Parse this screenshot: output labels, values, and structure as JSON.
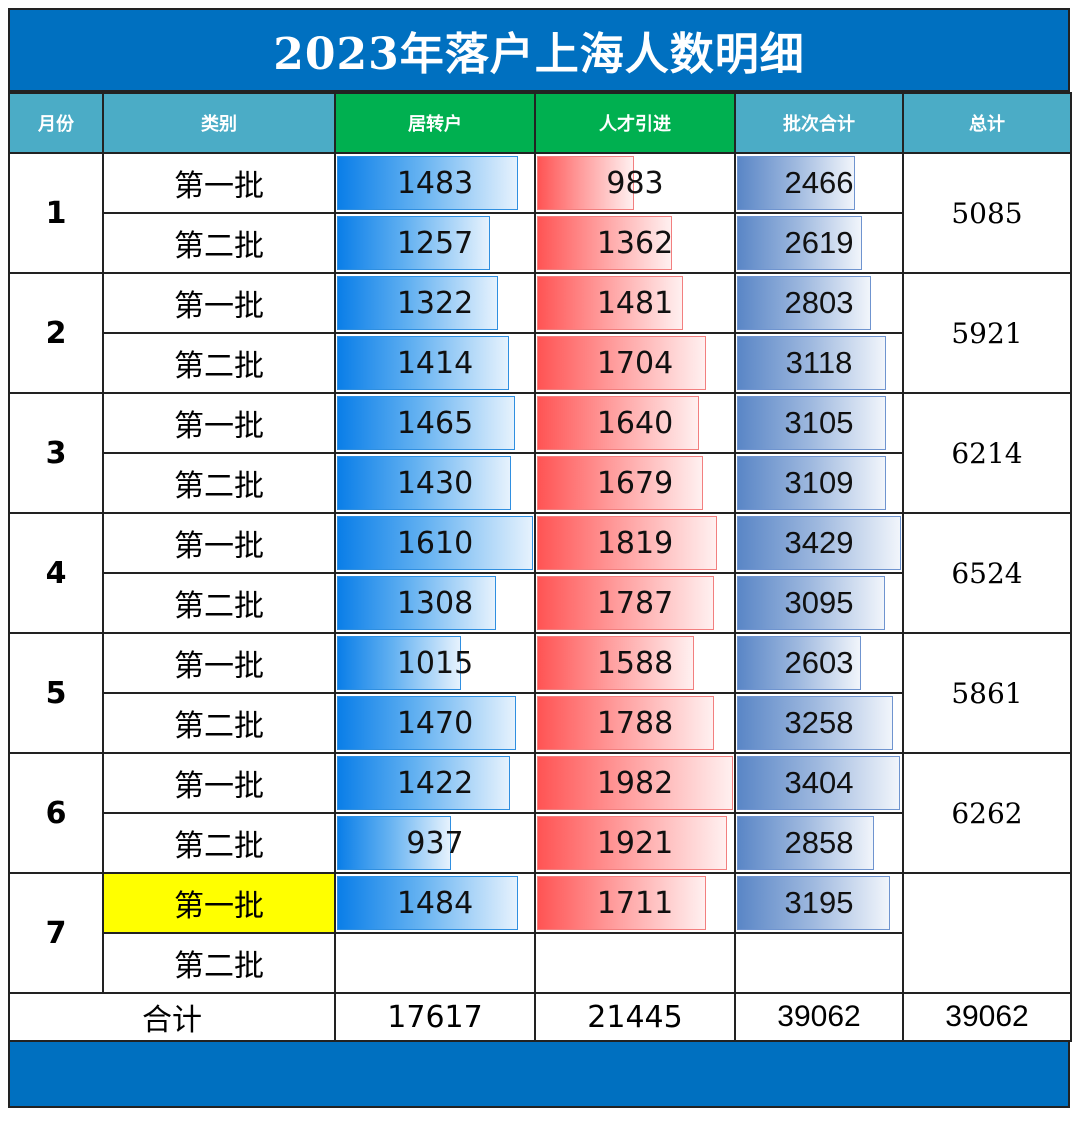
{
  "title": "2023年落户上海人数明细",
  "headers": [
    "月份",
    "类别",
    "居转户",
    "人才引进",
    "批次合计",
    "总计"
  ],
  "max_scale": {
    "juzhuan": 1610,
    "rencai": 1982,
    "pici": 3429
  },
  "colors": {
    "title_bg": "#0070c0",
    "header_teal": "#4bacc6",
    "header_green": "#00b050",
    "highlight": "#ffff00"
  },
  "months": [
    {
      "month": "1",
      "total": "5085",
      "rows": [
        {
          "cat": "第一批",
          "juzhuan": 1483,
          "rencai": 983,
          "pici": 2466
        },
        {
          "cat": "第二批",
          "juzhuan": 1257,
          "rencai": 1362,
          "pici": 2619
        }
      ]
    },
    {
      "month": "2",
      "total": "5921",
      "rows": [
        {
          "cat": "第一批",
          "juzhuan": 1322,
          "rencai": 1481,
          "pici": 2803
        },
        {
          "cat": "第二批",
          "juzhuan": 1414,
          "rencai": 1704,
          "pici": 3118
        }
      ]
    },
    {
      "month": "3",
      "total": "6214",
      "rows": [
        {
          "cat": "第一批",
          "juzhuan": 1465,
          "rencai": 1640,
          "pici": 3105
        },
        {
          "cat": "第二批",
          "juzhuan": 1430,
          "rencai": 1679,
          "pici": 3109
        }
      ]
    },
    {
      "month": "4",
      "total": "6524",
      "rows": [
        {
          "cat": "第一批",
          "juzhuan": 1610,
          "rencai": 1819,
          "pici": 3429
        },
        {
          "cat": "第二批",
          "juzhuan": 1308,
          "rencai": 1787,
          "pici": 3095
        }
      ]
    },
    {
      "month": "5",
      "total": "5861",
      "rows": [
        {
          "cat": "第一批",
          "juzhuan": 1015,
          "rencai": 1588,
          "pici": 2603
        },
        {
          "cat": "第二批",
          "juzhuan": 1470,
          "rencai": 1788,
          "pici": 3258
        }
      ]
    },
    {
      "month": "6",
      "total": "6262",
      "rows": [
        {
          "cat": "第一批",
          "juzhuan": 1422,
          "rencai": 1982,
          "pici": 3404
        },
        {
          "cat": "第二批",
          "juzhuan": 937,
          "rencai": 1921,
          "pici": 2858
        }
      ]
    },
    {
      "month": "7",
      "total": "",
      "rows": [
        {
          "cat": "第一批",
          "juzhuan": 1484,
          "rencai": 1711,
          "pici": 3195,
          "highlight": true
        },
        {
          "cat": "第二批",
          "juzhuan": null,
          "rencai": null,
          "pici": null
        }
      ]
    }
  ],
  "summary": {
    "label": "合计",
    "juzhuan": "17617",
    "rencai": "21445",
    "pici": "39062",
    "total": "39062"
  }
}
